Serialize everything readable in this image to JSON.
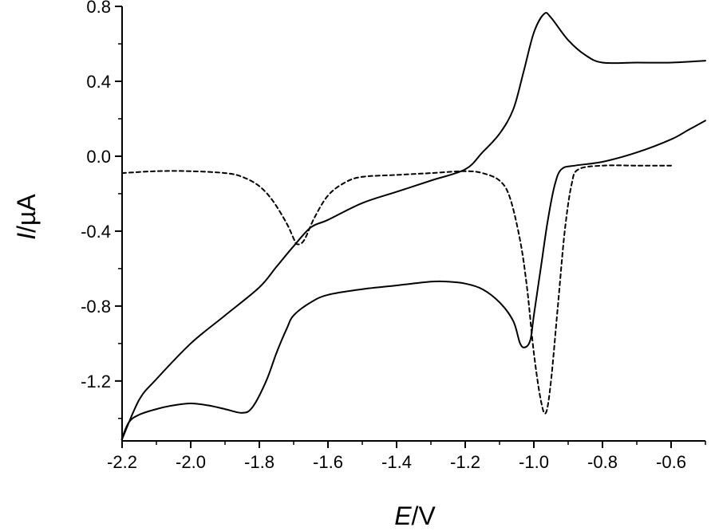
{
  "chart_data": {
    "type": "line",
    "xlabel": {
      "italic": "E",
      "rest": "/V"
    },
    "ylabel": {
      "italic": "I",
      "rest": "/µA"
    },
    "xlim": [
      -2.2,
      -0.5
    ],
    "ylim": [
      -1.52,
      0.8
    ],
    "x_ticks": [
      -2.2,
      -2.0,
      -1.8,
      -1.6,
      -1.4,
      -1.2,
      -1.0,
      -0.8,
      -0.6
    ],
    "x_tick_labels": [
      "-2.2",
      "-2.0",
      "-1.8",
      "-1.6",
      "-1.4",
      "-1.2",
      "-1.0",
      "-0.8",
      "-0.6"
    ],
    "y_ticks": [
      0.8,
      0.4,
      0.0,
      -0.4,
      -0.8,
      -1.2
    ],
    "y_tick_labels": [
      "0.8",
      "0.4",
      "0.0",
      "-0.4",
      "-0.8",
      "-1.2"
    ],
    "grid": false,
    "series": [
      {
        "style": "solid",
        "color": "#000000",
        "points": [
          [
            -0.5,
            0.51
          ],
          [
            -0.6,
            0.5
          ],
          [
            -0.7,
            0.5
          ],
          [
            -0.8,
            0.5
          ],
          [
            -0.85,
            0.54
          ],
          [
            -0.9,
            0.62
          ],
          [
            -0.95,
            0.74
          ],
          [
            -0.97,
            0.76
          ],
          [
            -1.0,
            0.66
          ],
          [
            -1.03,
            0.45
          ],
          [
            -1.06,
            0.25
          ],
          [
            -1.1,
            0.12
          ],
          [
            -1.15,
            0.02
          ],
          [
            -1.2,
            -0.07
          ],
          [
            -1.3,
            -0.13
          ],
          [
            -1.4,
            -0.19
          ],
          [
            -1.5,
            -0.25
          ],
          [
            -1.6,
            -0.34
          ],
          [
            -1.65,
            -0.38
          ],
          [
            -1.7,
            -0.48
          ],
          [
            -1.75,
            -0.59
          ],
          [
            -1.8,
            -0.7
          ],
          [
            -1.9,
            -0.85
          ],
          [
            -2.0,
            -1.0
          ],
          [
            -2.1,
            -1.19
          ],
          [
            -2.15,
            -1.3
          ],
          [
            -2.2,
            -1.51
          ],
          [
            -2.18,
            -1.42
          ],
          [
            -2.15,
            -1.38
          ],
          [
            -2.1,
            -1.35
          ],
          [
            -2.05,
            -1.33
          ],
          [
            -2.0,
            -1.32
          ],
          [
            -1.95,
            -1.33
          ],
          [
            -1.9,
            -1.35
          ],
          [
            -1.85,
            -1.37
          ],
          [
            -1.82,
            -1.34
          ],
          [
            -1.78,
            -1.2
          ],
          [
            -1.75,
            -1.05
          ],
          [
            -1.72,
            -0.92
          ],
          [
            -1.7,
            -0.85
          ],
          [
            -1.65,
            -0.78
          ],
          [
            -1.6,
            -0.74
          ],
          [
            -1.5,
            -0.71
          ],
          [
            -1.4,
            -0.69
          ],
          [
            -1.3,
            -0.67
          ],
          [
            -1.25,
            -0.67
          ],
          [
            -1.2,
            -0.68
          ],
          [
            -1.15,
            -0.71
          ],
          [
            -1.1,
            -0.78
          ],
          [
            -1.06,
            -0.88
          ],
          [
            -1.04,
            -1.0
          ],
          [
            -1.025,
            -1.02
          ],
          [
            -1.01,
            -0.98
          ],
          [
            -1.0,
            -0.85
          ],
          [
            -0.98,
            -0.6
          ],
          [
            -0.96,
            -0.35
          ],
          [
            -0.94,
            -0.16
          ],
          [
            -0.92,
            -0.07
          ],
          [
            -0.88,
            -0.05
          ],
          [
            -0.8,
            -0.03
          ],
          [
            -0.7,
            0.02
          ],
          [
            -0.6,
            0.09
          ],
          [
            -0.55,
            0.14
          ],
          [
            -0.5,
            0.19
          ]
        ]
      },
      {
        "style": "dashed",
        "color": "#000000",
        "points": [
          [
            -2.2,
            -0.09
          ],
          [
            -2.1,
            -0.08
          ],
          [
            -2.0,
            -0.08
          ],
          [
            -1.9,
            -0.09
          ],
          [
            -1.85,
            -0.11
          ],
          [
            -1.8,
            -0.16
          ],
          [
            -1.76,
            -0.24
          ],
          [
            -1.72,
            -0.36
          ],
          [
            -1.7,
            -0.44
          ],
          [
            -1.69,
            -0.47
          ],
          [
            -1.67,
            -0.45
          ],
          [
            -1.64,
            -0.33
          ],
          [
            -1.6,
            -0.21
          ],
          [
            -1.55,
            -0.14
          ],
          [
            -1.5,
            -0.11
          ],
          [
            -1.4,
            -0.1
          ],
          [
            -1.3,
            -0.09
          ],
          [
            -1.2,
            -0.08
          ],
          [
            -1.15,
            -0.09
          ],
          [
            -1.1,
            -0.13
          ],
          [
            -1.07,
            -0.22
          ],
          [
            -1.04,
            -0.45
          ],
          [
            -1.02,
            -0.7
          ],
          [
            -1.0,
            -1.05
          ],
          [
            -0.98,
            -1.3
          ],
          [
            -0.965,
            -1.37
          ],
          [
            -0.95,
            -1.2
          ],
          [
            -0.93,
            -0.8
          ],
          [
            -0.91,
            -0.4
          ],
          [
            -0.89,
            -0.15
          ],
          [
            -0.87,
            -0.07
          ],
          [
            -0.8,
            -0.05
          ],
          [
            -0.7,
            -0.05
          ],
          [
            -0.6,
            -0.05
          ]
        ]
      }
    ]
  }
}
